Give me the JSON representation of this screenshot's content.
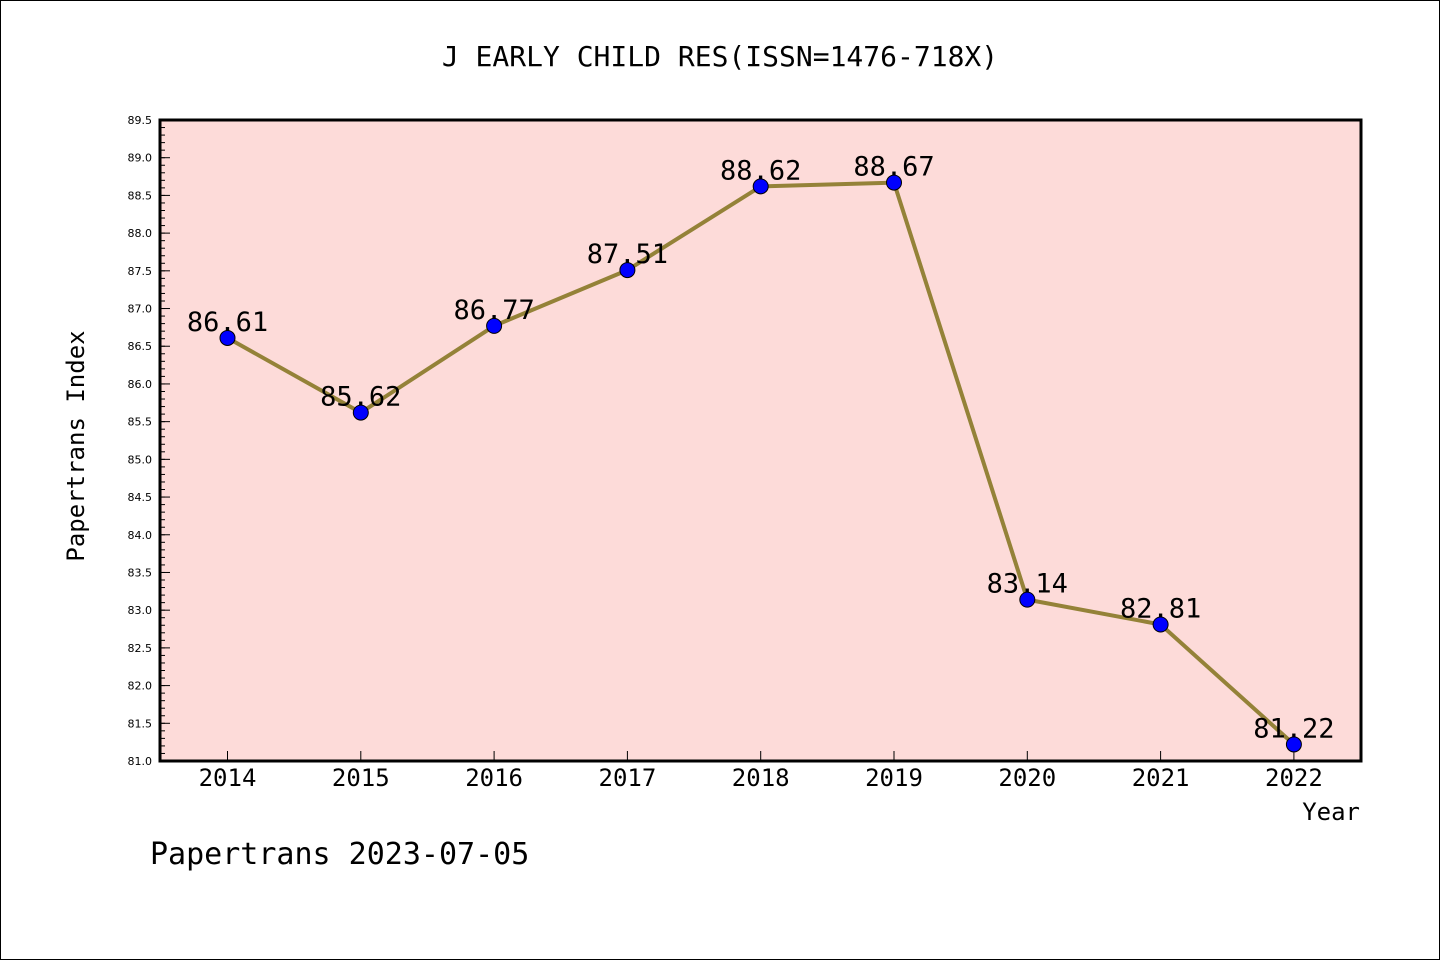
{
  "chart_data": {
    "type": "line",
    "title": "J EARLY CHILD RES(ISSN=1476-718X)",
    "xlabel": "Year",
    "ylabel": "Papertrans Index",
    "categories": [
      "2014",
      "2015",
      "2016",
      "2017",
      "2018",
      "2019",
      "2020",
      "2021",
      "2022"
    ],
    "series": [
      {
        "values": [
          86.61,
          85.62,
          86.77,
          87.51,
          88.62,
          88.67,
          83.14,
          82.81,
          81.22
        ],
        "data_labels": [
          "86.61",
          "85.62",
          "86.77",
          "87.51",
          "88.62",
          "88.67",
          "83.14",
          "82.81",
          "81.22"
        ]
      }
    ],
    "ylim": [
      81.0,
      89.5
    ],
    "yticks": [
      "81.0",
      "81.5",
      "82.0",
      "82.5",
      "83.0",
      "83.5",
      "84.0",
      "84.5",
      "85.0",
      "85.5",
      "86.0",
      "86.5",
      "87.0",
      "87.5",
      "88.0",
      "88.5",
      "89.0",
      "89.5"
    ],
    "grid": false,
    "colors": {
      "plot_background": "#fddbd9",
      "line": "#948238",
      "marker": "#0000ff"
    }
  },
  "footer": "Papertrans 2023-07-05"
}
